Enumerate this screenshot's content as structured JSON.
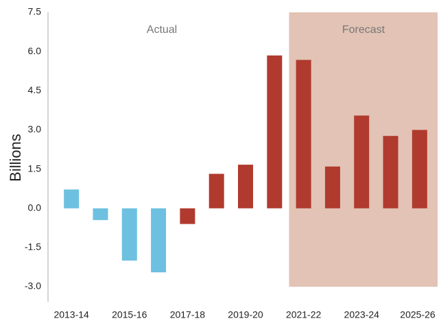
{
  "chart_data": {
    "type": "bar",
    "y_label": "Billions",
    "annotations": [
      "Actual",
      "Forecast"
    ],
    "categories": [
      "2013-14",
      null,
      "2015-16",
      null,
      "2017-18",
      null,
      "2019-20",
      null,
      "2021-22",
      null,
      "2023-24",
      null,
      "2025-26"
    ],
    "values": [
      0.72,
      -0.45,
      -2.0,
      -2.45,
      -0.6,
      1.32,
      1.67,
      5.85,
      5.68,
      1.6,
      3.55,
      2.77,
      3.0
    ],
    "colors": [
      "#6dc0e0",
      "#6dc0e0",
      "#6dc0e0",
      "#6dc0e0",
      "#b03a2e",
      "#b03a2e",
      "#b03a2e",
      "#b03a2e",
      "#b03a2e",
      "#b03a2e",
      "#b03a2e",
      "#b03a2e",
      "#b03a2e"
    ],
    "ylim": [
      -3.0,
      7.5
    ],
    "yticks": [
      {
        "value": -3.0,
        "label": "-3.0"
      },
      -1.5,
      {
        "value": 0,
        "label": "0.0"
      },
      1.5,
      {
        "value": 3.0,
        "label": "3.0"
      },
      4.5,
      {
        "value": 6.0,
        "label": "6.0"
      },
      7.5
    ],
    "grid": false
  }
}
